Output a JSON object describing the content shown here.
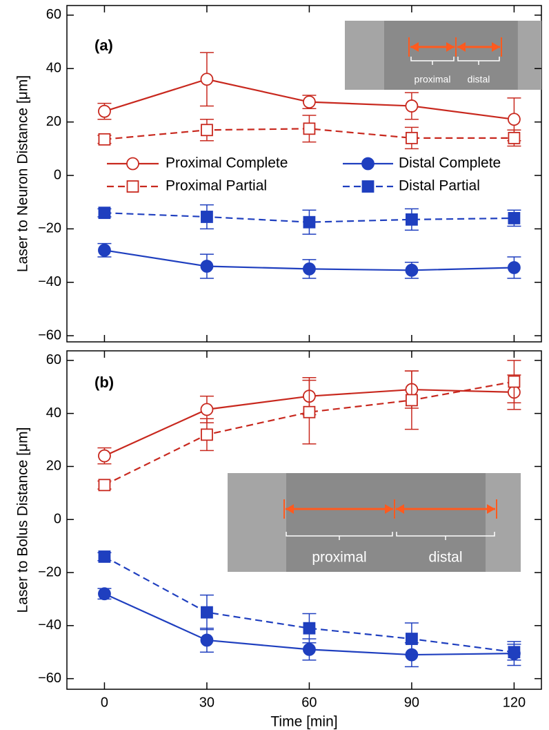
{
  "chart_data": [
    {
      "type": "line",
      "panel_label": "(a)",
      "ylabel": "Laser to Neuron Distance [μm]",
      "x": [
        0,
        30,
        60,
        90,
        120
      ],
      "xlim": [
        -11,
        128
      ],
      "xticks": [
        0,
        30,
        60,
        90,
        120
      ],
      "ylim": [
        -62.3,
        63.6
      ],
      "yticks": [
        {
          "value": -60,
          "label": "−60"
        },
        {
          "value": -40,
          "label": "−40"
        },
        {
          "value": -20,
          "label": "−20"
        },
        0,
        20,
        40,
        60
      ],
      "legend": true,
      "inset_labels": [
        "proximal",
        "distal"
      ],
      "series": [
        {
          "name": "Proximal Complete",
          "color": "#c8281e",
          "marker": "circle",
          "filled": false,
          "dashed": false,
          "values": [
            24,
            36,
            27.5,
            26,
            21
          ],
          "errors": [
            3,
            10,
            2.5,
            5,
            8
          ]
        },
        {
          "name": "Proximal Partial",
          "color": "#c8281e",
          "marker": "square",
          "filled": false,
          "dashed": true,
          "values": [
            13.5,
            17,
            17.5,
            14,
            14
          ],
          "errors": [
            1.5,
            4,
            5,
            4,
            3
          ]
        },
        {
          "name": "Distal Complete",
          "color": "#1f3fbf",
          "marker": "circle",
          "filled": true,
          "dashed": false,
          "values": [
            -28,
            -34,
            -35,
            -35.5,
            -34.5
          ],
          "errors": [
            2.5,
            4.5,
            3.5,
            3,
            4
          ]
        },
        {
          "name": "Distal Partial",
          "color": "#1f3fbf",
          "marker": "square",
          "filled": true,
          "dashed": true,
          "values": [
            -14,
            -15.5,
            -17.5,
            -16.5,
            -16
          ],
          "errors": [
            1.5,
            4.5,
            4.5,
            4,
            3
          ]
        }
      ]
    },
    {
      "type": "line",
      "panel_label": "(b)",
      "ylabel": "Laser to Bolus Distance [μm]",
      "xlabel": "Time [min]",
      "x": [
        0,
        30,
        60,
        90,
        120
      ],
      "xlim": [
        -11,
        128
      ],
      "xticks": [
        0,
        30,
        60,
        90,
        120
      ],
      "ylim": [
        -64,
        63.6
      ],
      "yticks": [
        {
          "value": -60,
          "label": "−60"
        },
        {
          "value": -40,
          "label": "−40"
        },
        {
          "value": -20,
          "label": "−20"
        },
        0,
        20,
        40,
        60
      ],
      "legend": false,
      "inset_labels": [
        "proximal",
        "distal"
      ],
      "series": [
        {
          "name": "Proximal Complete",
          "color": "#c8281e",
          "marker": "circle",
          "filled": false,
          "dashed": false,
          "values": [
            24,
            41.5,
            46.5,
            49,
            48
          ],
          "errors": [
            3,
            5,
            7,
            7,
            6.5
          ]
        },
        {
          "name": "Proximal Partial",
          "color": "#c8281e",
          "marker": "square",
          "filled": false,
          "dashed": true,
          "values": [
            13,
            32,
            40.5,
            45,
            52
          ],
          "errors": [
            1.5,
            6,
            12,
            11,
            8
          ]
        },
        {
          "name": "Distal Complete",
          "color": "#1f3fbf",
          "marker": "circle",
          "filled": true,
          "dashed": false,
          "values": [
            -28,
            -45.5,
            -49,
            -51,
            -50.5
          ],
          "errors": [
            2,
            4.5,
            4,
            4.5,
            4.5
          ]
        },
        {
          "name": "Distal Partial",
          "color": "#1f3fbf",
          "marker": "square",
          "filled": true,
          "dashed": true,
          "values": [
            -14,
            -35,
            -41,
            -45,
            -50
          ],
          "errors": [
            1.5,
            6.5,
            5.5,
            6,
            3
          ]
        }
      ]
    }
  ]
}
